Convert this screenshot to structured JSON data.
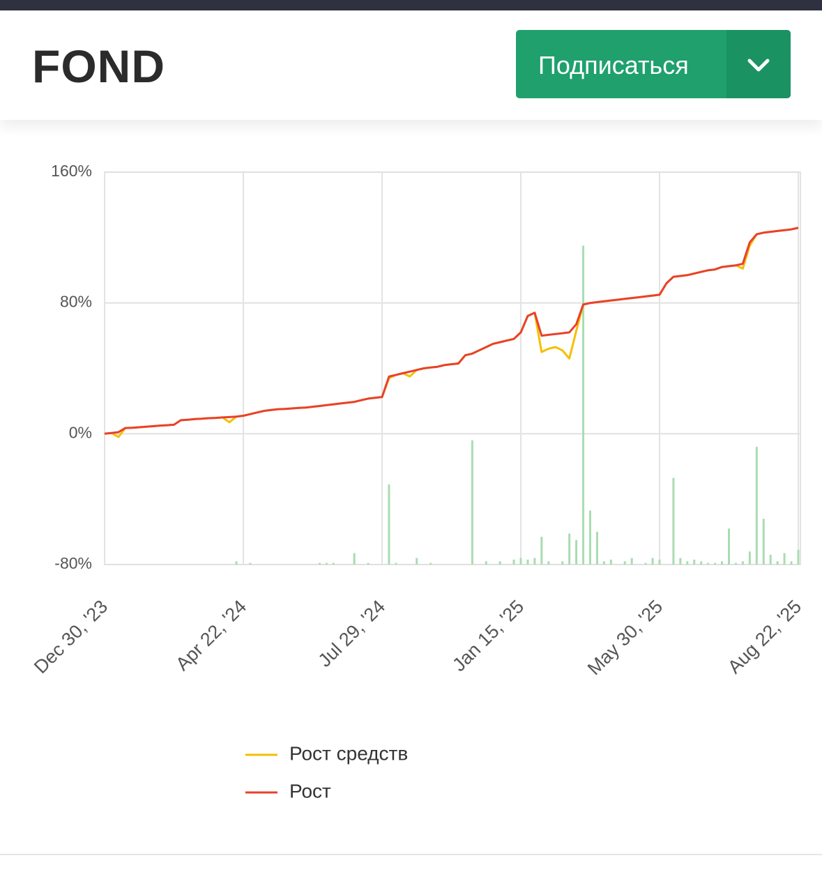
{
  "header": {
    "title": "FOND",
    "button": "Подписаться"
  },
  "chart_data": {
    "type": "line",
    "categories": [
      "Dec 30, '23",
      null,
      null,
      null,
      null,
      null,
      null,
      null,
      null,
      null,
      null,
      null,
      null,
      null,
      null,
      null,
      null,
      null,
      null,
      null,
      "Apr 22, '24",
      null,
      null,
      null,
      null,
      null,
      null,
      null,
      null,
      null,
      null,
      null,
      null,
      null,
      null,
      null,
      null,
      null,
      null,
      null,
      "Jul 29, '24",
      null,
      null,
      null,
      null,
      null,
      null,
      null,
      null,
      null,
      null,
      null,
      null,
      null,
      null,
      null,
      null,
      null,
      null,
      null,
      "Jan 15, '25",
      null,
      null,
      null,
      null,
      null,
      null,
      null,
      null,
      null,
      null,
      null,
      null,
      null,
      null,
      null,
      null,
      null,
      null,
      null,
      "May 30, '25",
      null,
      null,
      null,
      null,
      null,
      null,
      null,
      null,
      null,
      null,
      null,
      null,
      null,
      null,
      null,
      null,
      null,
      null,
      null,
      "Aug 22, '25"
    ],
    "series": [
      {
        "name": "Рост средств",
        "color": "#f5bf00",
        "values": [
          0,
          0.5,
          -2,
          3.5,
          3.7,
          4,
          4.3,
          4.6,
          5,
          5.2,
          5.5,
          8.3,
          8.6,
          9,
          9.2,
          9.5,
          9.7,
          10,
          7,
          10.5,
          11,
          12,
          13,
          14,
          14.5,
          15,
          15.2,
          15.5,
          15.8,
          16,
          16.5,
          17,
          17.5,
          18,
          18.5,
          19,
          19.5,
          20.5,
          21.5,
          22,
          22.5,
          34,
          36,
          37,
          35,
          39,
          40,
          40.5,
          41,
          42,
          42.5,
          43,
          48,
          49,
          51,
          53,
          55,
          56,
          57,
          58,
          62,
          72,
          74,
          50,
          52,
          53,
          51,
          46,
          63,
          79,
          80,
          80.5,
          81,
          81.5,
          82,
          82.5,
          83,
          83.5,
          84,
          84.5,
          85,
          92,
          96,
          96.5,
          97,
          98,
          99,
          100,
          100.5,
          102,
          102.5,
          103,
          101,
          115,
          122,
          123,
          123.5,
          124,
          124.5,
          125,
          126
        ]
      },
      {
        "name": "Рост",
        "color": "#e8412c",
        "values": [
          0,
          0.5,
          1,
          3.5,
          3.7,
          4,
          4.3,
          4.6,
          5,
          5.2,
          5.5,
          8.3,
          8.6,
          9,
          9.2,
          9.5,
          9.7,
          10,
          10.2,
          10.5,
          11,
          12,
          13,
          14,
          14.5,
          15,
          15.2,
          15.5,
          15.8,
          16,
          16.5,
          17,
          17.5,
          18,
          18.5,
          19,
          19.5,
          20.5,
          21.5,
          22,
          22.5,
          35,
          36,
          37,
          38,
          39,
          40,
          40.5,
          41,
          42,
          42.5,
          43,
          48,
          49,
          51,
          53,
          55,
          56,
          57,
          58,
          62,
          72,
          74,
          60,
          60.5,
          61,
          61.5,
          62,
          67,
          79,
          80,
          80.5,
          81,
          81.5,
          82,
          82.5,
          83,
          83.5,
          84,
          84.5,
          85,
          92,
          96,
          96.5,
          97,
          98,
          99,
          100,
          100.5,
          102,
          102.5,
          103,
          104,
          117,
          122,
          123,
          123.5,
          124,
          124.5,
          125,
          126
        ]
      }
    ],
    "bars": {
      "color": "#a9dcb1",
      "values": [
        null,
        null,
        null,
        null,
        null,
        null,
        null,
        null,
        null,
        null,
        null,
        null,
        null,
        null,
        null,
        null,
        null,
        null,
        null,
        -78,
        null,
        -79,
        null,
        null,
        null,
        null,
        null,
        null,
        null,
        null,
        null,
        -79,
        -79,
        -79,
        null,
        null,
        -73,
        null,
        -79,
        null,
        null,
        -31,
        -79,
        null,
        null,
        -76,
        null,
        -79,
        null,
        null,
        null,
        null,
        null,
        -4,
        null,
        -78,
        null,
        -78,
        null,
        -77,
        -76,
        -77,
        -76,
        -63,
        -78,
        null,
        -78,
        -61,
        -65,
        115,
        -47,
        -60,
        -78,
        -77,
        null,
        -78,
        -76,
        null,
        -79,
        -76,
        -77,
        null,
        -27,
        -76,
        -78,
        -77,
        -78,
        -79,
        -79,
        -78,
        -58,
        -79,
        -78,
        -72,
        -8,
        -52,
        -74,
        -78,
        -73,
        -78,
        -71
      ]
    },
    "ylim": [
      -80,
      160
    ],
    "yticks": [
      {
        "value": -80,
        "label": "-80%"
      },
      {
        "value": 0,
        "label": "0%"
      },
      {
        "value": 80,
        "label": "80%"
      },
      {
        "value": 160,
        "label": "160%"
      }
    ],
    "grid": true
  }
}
